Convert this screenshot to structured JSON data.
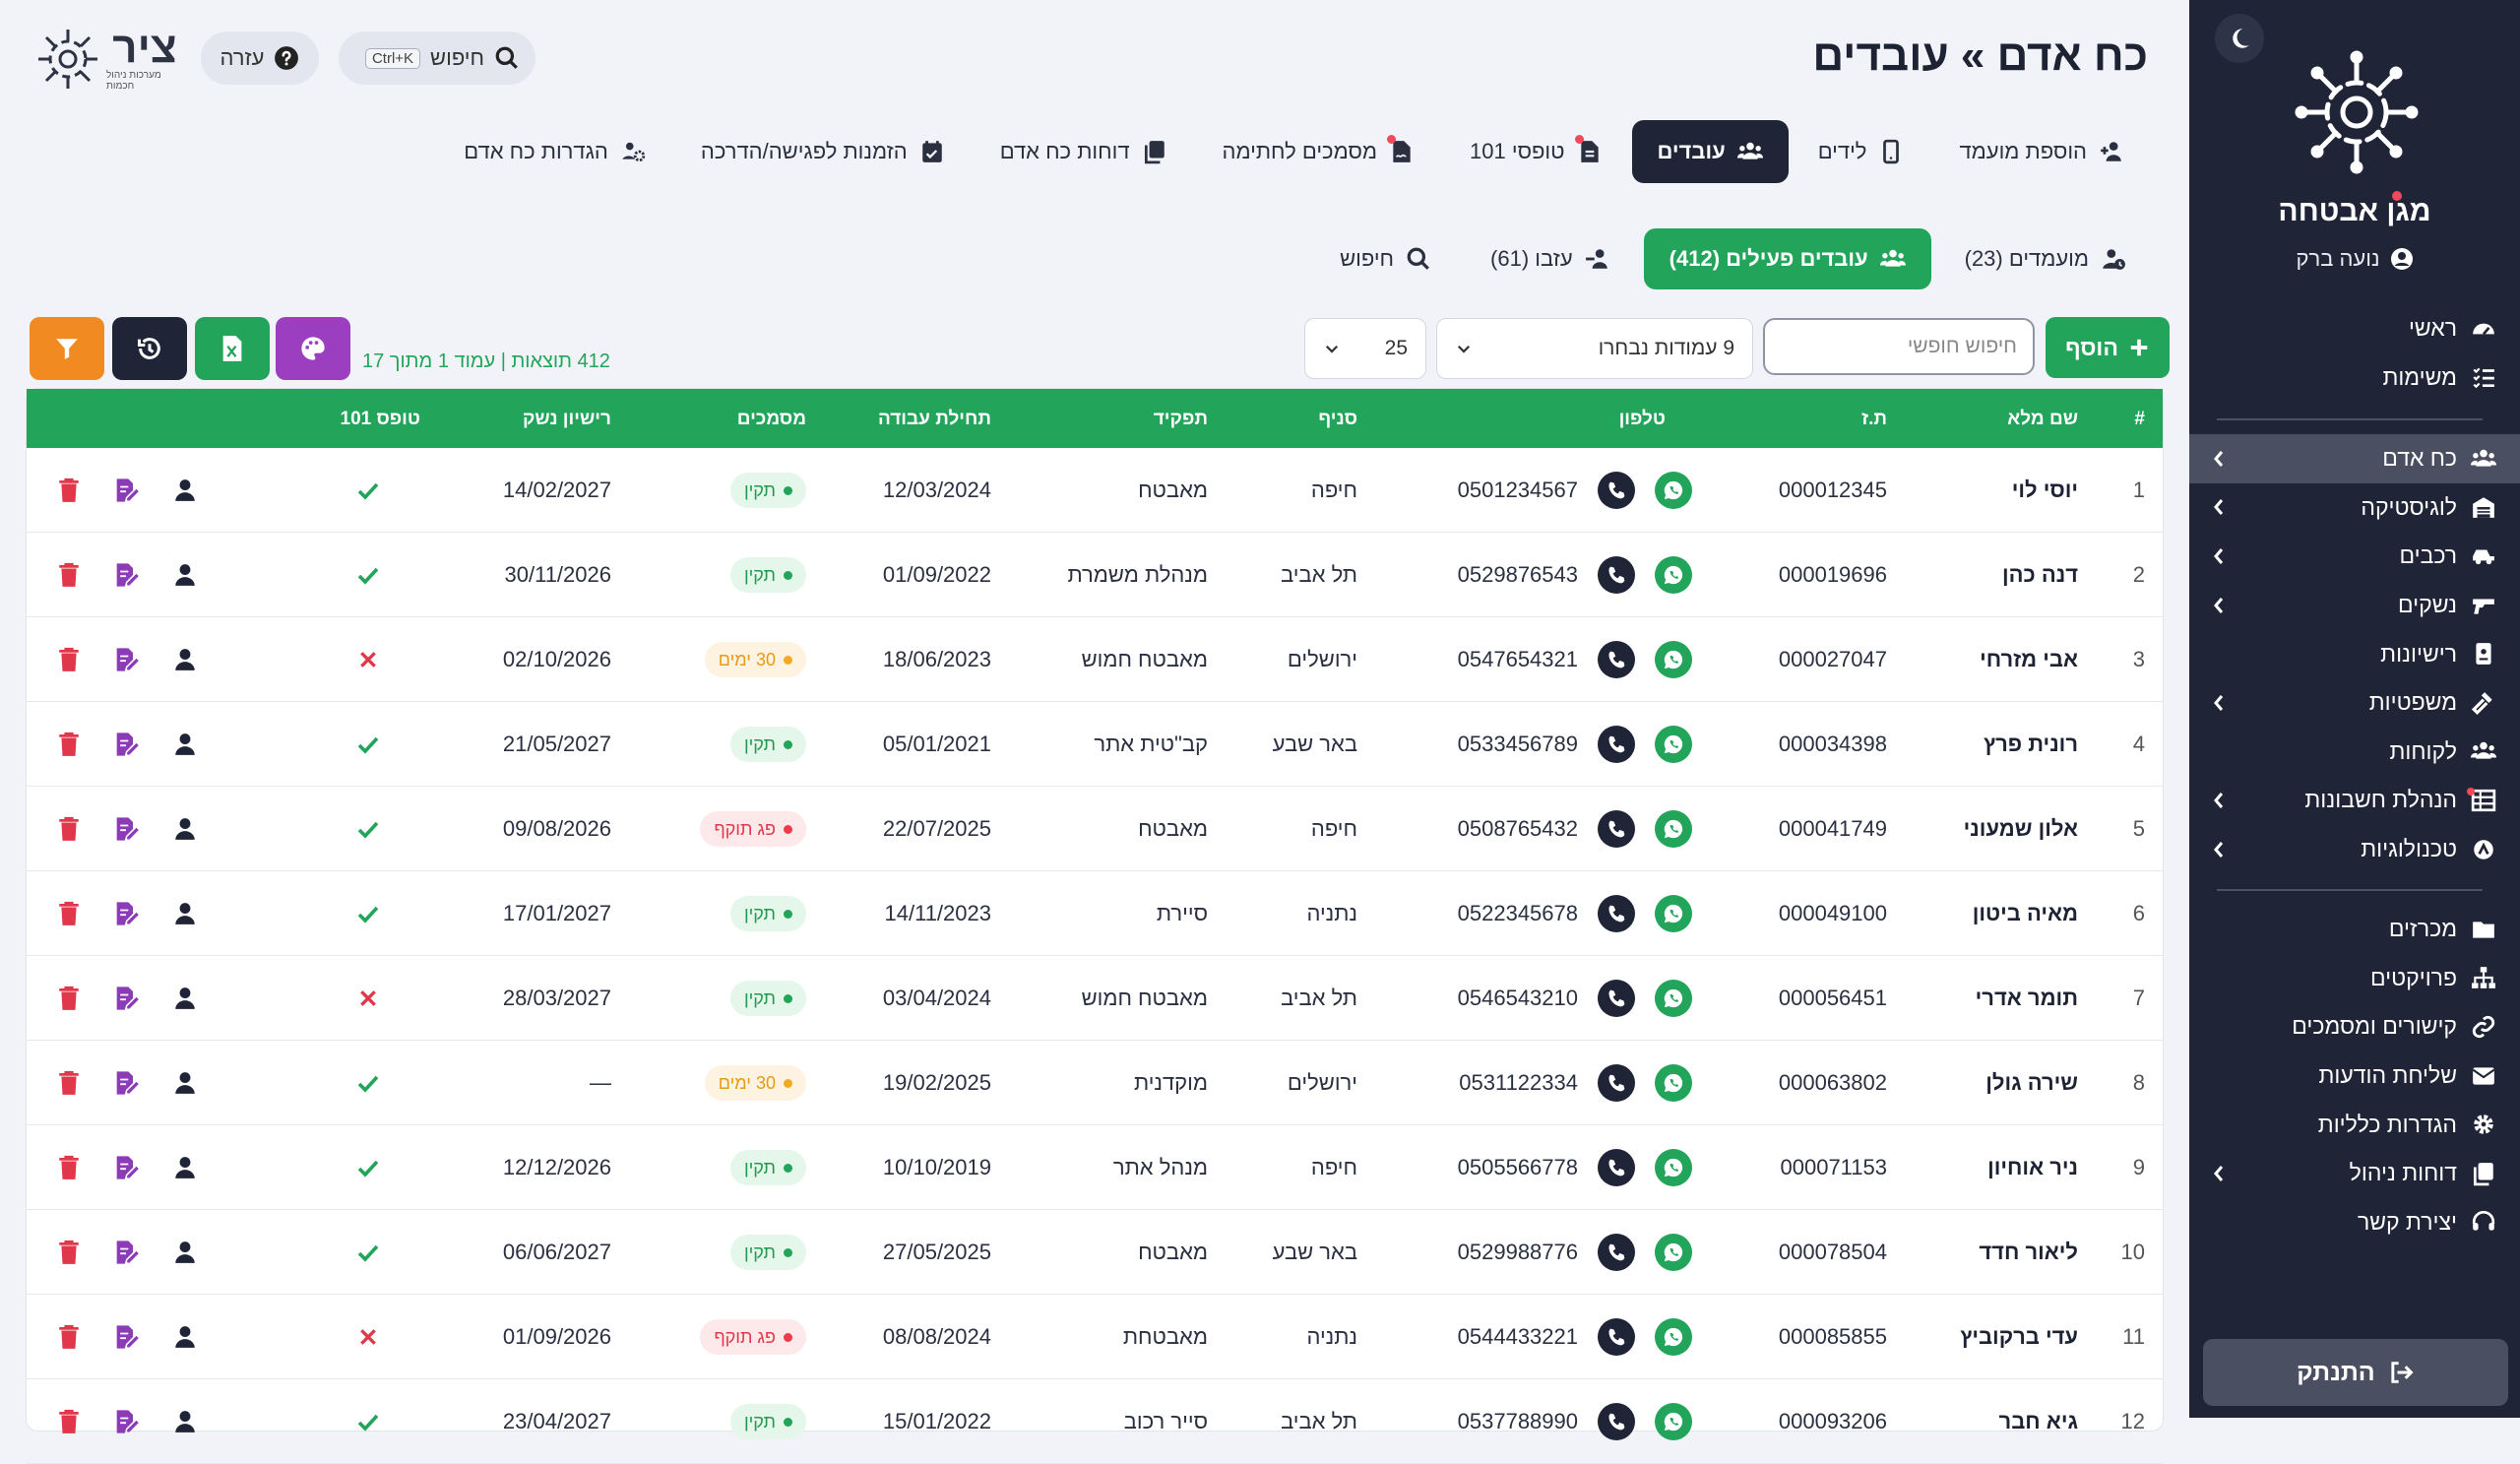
{
  "page": {
    "title": "כח אדם » עובדים"
  },
  "header": {
    "search_label": "חיפוש",
    "search_shortcut": "Ctrl+K",
    "help_label": "עזרה",
    "logo_word": "ציר",
    "logo_sub": "מערכות ניהול חכמות"
  },
  "sidebar": {
    "company": "מגן אבטחה",
    "user": "נועה ברק",
    "group1": [
      {
        "label": "ראשי",
        "icon": "gauge-icon"
      },
      {
        "label": "משימות",
        "icon": "checklist-icon"
      }
    ],
    "group2": [
      {
        "label": "כח אדם",
        "icon": "users-icon",
        "chevron": true,
        "active": true
      },
      {
        "label": "לוגיסטיקה",
        "icon": "warehouse-icon",
        "chevron": true
      },
      {
        "label": "רכבים",
        "icon": "car-icon",
        "chevron": true
      },
      {
        "label": "נשקים",
        "icon": "gun-icon",
        "chevron": true
      },
      {
        "label": "רישיונות",
        "icon": "id-card-icon"
      },
      {
        "label": "משפטיות",
        "icon": "gavel-icon",
        "chevron": true
      },
      {
        "label": "לקוחות",
        "icon": "clients-icon"
      },
      {
        "label": "הנהלת חשבונות",
        "icon": "ledger-icon",
        "chevron": true,
        "dot": true
      },
      {
        "label": "טכנולוגיות",
        "icon": "tech-icon",
        "chevron": true
      }
    ],
    "group3": [
      {
        "label": "מכרזים",
        "icon": "folder-icon"
      },
      {
        "label": "פרויקטים",
        "icon": "sitemap-icon"
      },
      {
        "label": "קישורים ומסמכים",
        "icon": "link-icon"
      },
      {
        "label": "שליחת הודעות",
        "icon": "envelope-icon"
      },
      {
        "label": "הגדרות כלליות",
        "icon": "gear-icon"
      },
      {
        "label": "דוחות ניהול",
        "icon": "copy-icon",
        "chevron": true
      },
      {
        "label": "יצירת קשר",
        "icon": "headset-icon"
      }
    ],
    "logout_label": "התנתק"
  },
  "main_tabs": [
    {
      "label": "הוספת מועמד",
      "icon": "user-plus-icon"
    },
    {
      "label": "לידים",
      "icon": "mobile-icon"
    },
    {
      "label": "עובדים",
      "icon": "users-icon",
      "active": true
    },
    {
      "label": "טופסי 101",
      "icon": "file-icon",
      "dot": true
    },
    {
      "label": "מסמכים לחתימה",
      "icon": "file-sign-icon",
      "dot": true
    },
    {
      "label": "דוחות כח אדם",
      "icon": "copy-icon"
    },
    {
      "label": "הזמנות לפגישה/הדרכה",
      "icon": "calendar-check-icon"
    },
    {
      "label": "הגדרות כח אדם",
      "icon": "users-gear-icon"
    }
  ],
  "sub_tabs": [
    {
      "label": "מועמדים (23)",
      "icon": "user-clock-icon"
    },
    {
      "label": "עובדים פעילים (412)",
      "icon": "users-icon",
      "active": true
    },
    {
      "label": "עזבו (61)",
      "icon": "user-minus-icon"
    },
    {
      "label": "חיפוש",
      "icon": "search-icon"
    }
  ],
  "toolbar": {
    "add_label": "הוסף",
    "search_placeholder": "חיפוש חופשי",
    "columns_label": "9 עמודות נבחרו",
    "page_size": "25",
    "results_info": "412 תוצאות | עמוד 1 מתוך 17"
  },
  "colors": {
    "green": "#22a55a",
    "dark": "#1f2536",
    "purple": "#9b3fc0",
    "orange": "#f28a22",
    "red": "#e0374a"
  },
  "table": {
    "headers": {
      "num": "#",
      "name": "שם מלא",
      "id": "ת.ז",
      "phone": "טלפון",
      "branch": "סניף",
      "role": "תפקיד",
      "start": "תחילת עבודה",
      "docs": "מסמכים",
      "gun": "רישיון נשק",
      "form101": "טופס 101"
    },
    "rows": [
      {
        "num": "1",
        "name": "יוסי לוי",
        "id": "000012345",
        "phone": "0501234567",
        "branch": "חיפה",
        "role": "מאבטח",
        "start": "12/03/2024",
        "docs": "תקין",
        "docs_status": "ok",
        "gun": "14/02/2027",
        "form101": true
      },
      {
        "num": "2",
        "name": "דנה כהן",
        "id": "000019696",
        "phone": "0529876543",
        "branch": "תל אביב",
        "role": "מנהלת משמרת",
        "start": "01/09/2022",
        "docs": "תקין",
        "docs_status": "ok",
        "gun": "30/11/2026",
        "form101": true
      },
      {
        "num": "3",
        "name": "אבי מזרחי",
        "id": "000027047",
        "phone": "0547654321",
        "branch": "ירושלים",
        "role": "מאבטח חמוש",
        "start": "18/06/2023",
        "docs": "30 ימים",
        "docs_status": "warn",
        "gun": "02/10/2026",
        "form101": false
      },
      {
        "num": "4",
        "name": "רונית פרץ",
        "id": "000034398",
        "phone": "0533456789",
        "branch": "באר שבע",
        "role": "קב\"טית אתר",
        "start": "05/01/2021",
        "docs": "תקין",
        "docs_status": "ok",
        "gun": "21/05/2027",
        "form101": true
      },
      {
        "num": "5",
        "name": "אלון שמעוני",
        "id": "000041749",
        "phone": "0508765432",
        "branch": "חיפה",
        "role": "מאבטח",
        "start": "22/07/2025",
        "docs": "פג תוקף",
        "docs_status": "bad",
        "gun": "09/08/2026",
        "form101": true
      },
      {
        "num": "6",
        "name": "מאיה ביטון",
        "id": "000049100",
        "phone": "0522345678",
        "branch": "נתניה",
        "role": "סיירת",
        "start": "14/11/2023",
        "docs": "תקין",
        "docs_status": "ok",
        "gun": "17/01/2027",
        "form101": true
      },
      {
        "num": "7",
        "name": "תומר אדרי",
        "id": "000056451",
        "phone": "0546543210",
        "branch": "תל אביב",
        "role": "מאבטח חמוש",
        "start": "03/04/2024",
        "docs": "תקין",
        "docs_status": "ok",
        "gun": "28/03/2027",
        "form101": false
      },
      {
        "num": "8",
        "name": "שירה גולן",
        "id": "000063802",
        "phone": "0531122334",
        "branch": "ירושלים",
        "role": "מוקדנית",
        "start": "19/02/2025",
        "docs": "30 ימים",
        "docs_status": "warn",
        "gun": "—",
        "form101": true
      },
      {
        "num": "9",
        "name": "ניר אוחיון",
        "id": "000071153",
        "phone": "0505566778",
        "branch": "חיפה",
        "role": "מנהל אתר",
        "start": "10/10/2019",
        "docs": "תקין",
        "docs_status": "ok",
        "gun": "12/12/2026",
        "form101": true
      },
      {
        "num": "10",
        "name": "ליאור חדד",
        "id": "000078504",
        "phone": "0529988776",
        "branch": "באר שבע",
        "role": "מאבטח",
        "start": "27/05/2025",
        "docs": "תקין",
        "docs_status": "ok",
        "gun": "06/06/2027",
        "form101": true
      },
      {
        "num": "11",
        "name": "עדי ברקוביץ",
        "id": "000085855",
        "phone": "0544433221",
        "branch": "נתניה",
        "role": "מאבטחת",
        "start": "08/08/2024",
        "docs": "פג תוקף",
        "docs_status": "bad",
        "gun": "01/09/2026",
        "form101": false
      },
      {
        "num": "12",
        "name": "גיא חבר",
        "id": "000093206",
        "phone": "0537788990",
        "branch": "תל אביב",
        "role": "סייר רכוב",
        "start": "15/01/2022",
        "docs": "תקין",
        "docs_status": "ok",
        "gun": "23/04/2027",
        "form101": true
      }
    ]
  }
}
